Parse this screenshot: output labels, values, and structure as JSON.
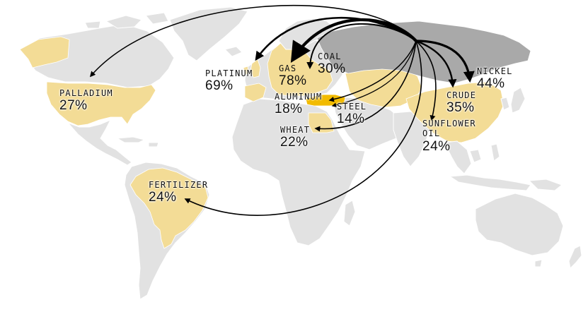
{
  "colors": {
    "land": "#e2e2e2",
    "importer": "#f3dc96",
    "russia": "#a9a9a9",
    "turkey": "#f2bb00",
    "arrow": "#000000"
  },
  "commodities": [
    {
      "name": "PALLADIUM",
      "pct": "27%"
    },
    {
      "name": "PLATINUM",
      "pct": "69%"
    },
    {
      "name": "GAS",
      "pct": "78%"
    },
    {
      "name": "COAL",
      "pct": "30%"
    },
    {
      "name": "ALUMINUM",
      "pct": "18%"
    },
    {
      "name": "STEEL",
      "pct": "14%"
    },
    {
      "name": "WHEAT",
      "pct": "22%"
    },
    {
      "name": "NICKEL",
      "pct": "44%"
    },
    {
      "name": "CRUDE",
      "pct": "35%"
    },
    {
      "name": "SUNFLOWER OIL",
      "pct": "24%"
    },
    {
      "name": "FERTILIZER",
      "pct": "24%"
    }
  ]
}
